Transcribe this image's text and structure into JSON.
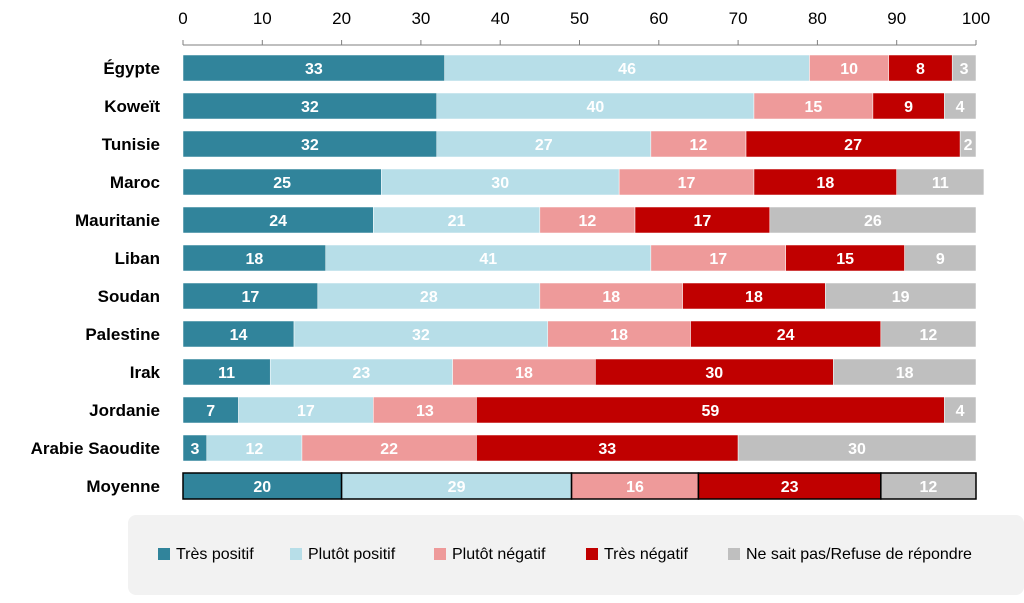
{
  "chart_data": {
    "type": "bar",
    "orientation": "horizontal",
    "stacked": true,
    "xlim": [
      0,
      100
    ],
    "xticks": [
      "0",
      "10",
      "20",
      "30",
      "40",
      "50",
      "60",
      "70",
      "80",
      "90",
      "100"
    ],
    "categories": [
      "Égypte",
      "Koweït",
      "Tunisie",
      "Maroc",
      "Mauritanie",
      "Liban",
      "Soudan",
      "Palestine",
      "Irak",
      "Jordanie",
      "Arabie Saoudite",
      "Moyenne"
    ],
    "series": [
      {
        "name": "Très positif",
        "color": "#31849b",
        "label_color": "#ffffff",
        "values": [
          33,
          32,
          32,
          25,
          24,
          18,
          17,
          14,
          11,
          7,
          3,
          20
        ]
      },
      {
        "name": "Plutôt positif",
        "color": "#b7dee8",
        "label_color": "#ffffff",
        "values": [
          46,
          40,
          27,
          30,
          21,
          41,
          28,
          32,
          23,
          17,
          12,
          29
        ]
      },
      {
        "name": "Plutôt négatif",
        "color": "#ee9a9a",
        "label_color": "#ffffff",
        "values": [
          10,
          15,
          12,
          17,
          12,
          17,
          18,
          18,
          18,
          13,
          22,
          16
        ]
      },
      {
        "name": "Très négatif",
        "color": "#c00000",
        "label_color": "#ffffff",
        "values": [
          8,
          9,
          27,
          18,
          17,
          15,
          18,
          24,
          30,
          59,
          33,
          23
        ]
      },
      {
        "name": "Ne sait pas/Refuse de répondre",
        "color": "#bfbfbf",
        "label_color": "#ffffff",
        "values": [
          3,
          4,
          2,
          11,
          26,
          9,
          19,
          12,
          18,
          4,
          30,
          12
        ]
      }
    ],
    "highlight_category": "Moyenne",
    "legend_position": "bottom",
    "grid": false
  }
}
